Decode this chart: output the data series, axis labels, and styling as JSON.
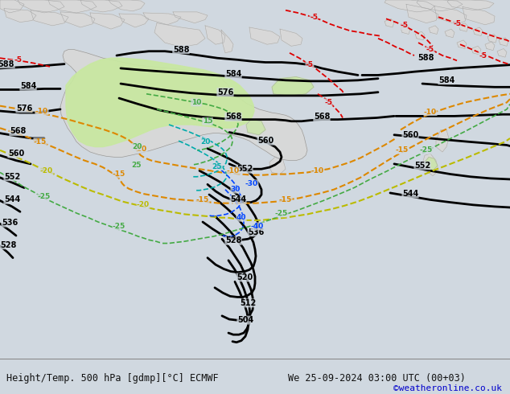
{
  "title_left": "Height/Temp. 500 hPa [gdmp][°C] ECMWF",
  "title_right": "We 25-09-2024 03:00 UTC (00+03)",
  "copyright": "©weatheronline.co.uk",
  "land_color": "#d8d8d8",
  "ocean_color": "#d0d8e0",
  "green_color": "#c8e8a0",
  "footer_bg": "#e0e0e0",
  "footer_text": "#111111",
  "copyright_color": "#0000cc",
  "figsize": [
    6.34,
    4.9
  ],
  "dpi": 100
}
